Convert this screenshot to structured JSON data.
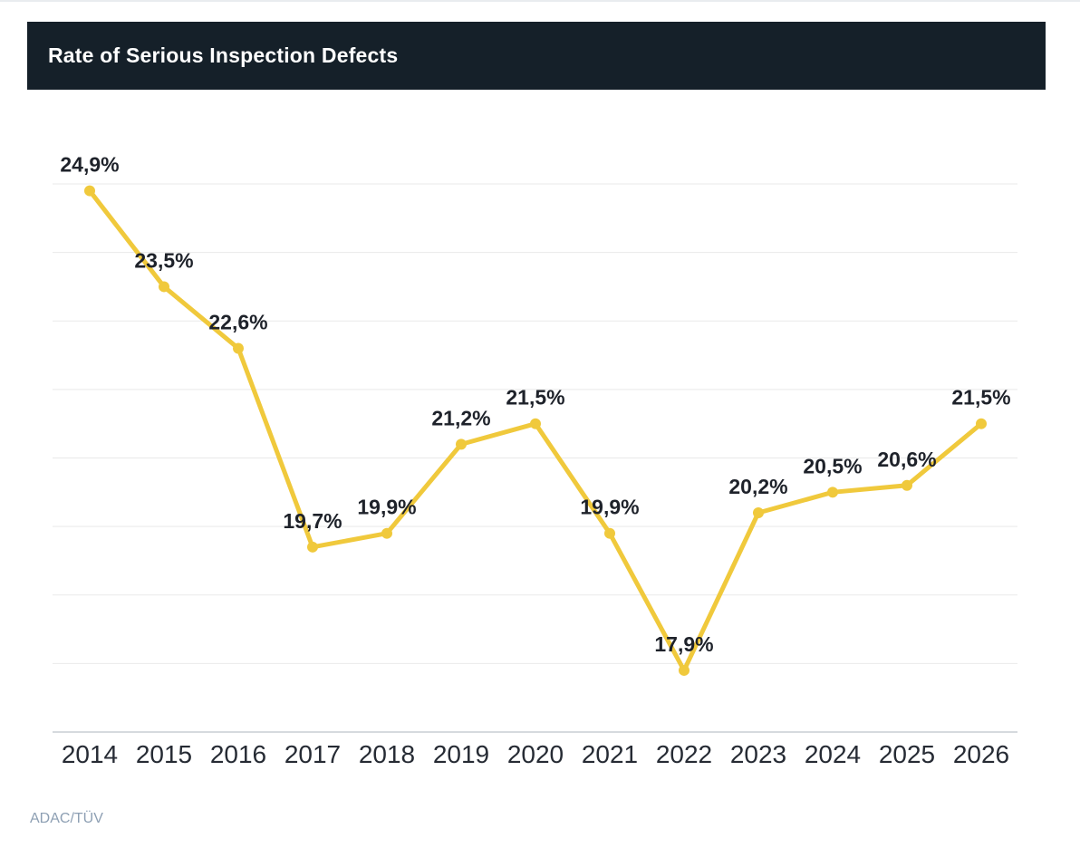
{
  "header": {
    "title": "Rate of Serious Inspection Defects"
  },
  "footer": {
    "source": "ADAC/TÜV"
  },
  "colors": {
    "header_bg": "#152029",
    "header_text": "#ffffff",
    "line": "#F0C93C",
    "point": "#F0C93C",
    "gridline": "#e9e9e9",
    "axis_line": "#c9ced4",
    "value_label": "#1e222a",
    "tick_label": "#262b34",
    "source_text": "#8d9fb3",
    "top_border": "#e9ecef"
  },
  "chart_data": {
    "type": "line",
    "title": "Rate of Serious Inspection Defects",
    "categories": [
      "2014",
      "2015",
      "2016",
      "2017",
      "2018",
      "2019",
      "2020",
      "2021",
      "2022",
      "2023",
      "2024",
      "2025",
      "2026"
    ],
    "values": [
      24.9,
      23.5,
      22.6,
      19.7,
      19.9,
      21.2,
      21.5,
      19.9,
      17.9,
      20.2,
      20.5,
      20.6,
      21.5
    ],
    "value_labels": [
      "24,9%",
      "23,5%",
      "22,6%",
      "19,7%",
      "19,9%",
      "21,2%",
      "21,5%",
      "19,9%",
      "17,9%",
      "20,2%",
      "20,5%",
      "20,6%",
      "21,5%"
    ],
    "xlabel": "",
    "ylabel": "",
    "ylim": [
      17,
      25
    ],
    "gridline_step": 1,
    "grid": true,
    "legend": "none",
    "source": "ADAC/TÜV"
  }
}
